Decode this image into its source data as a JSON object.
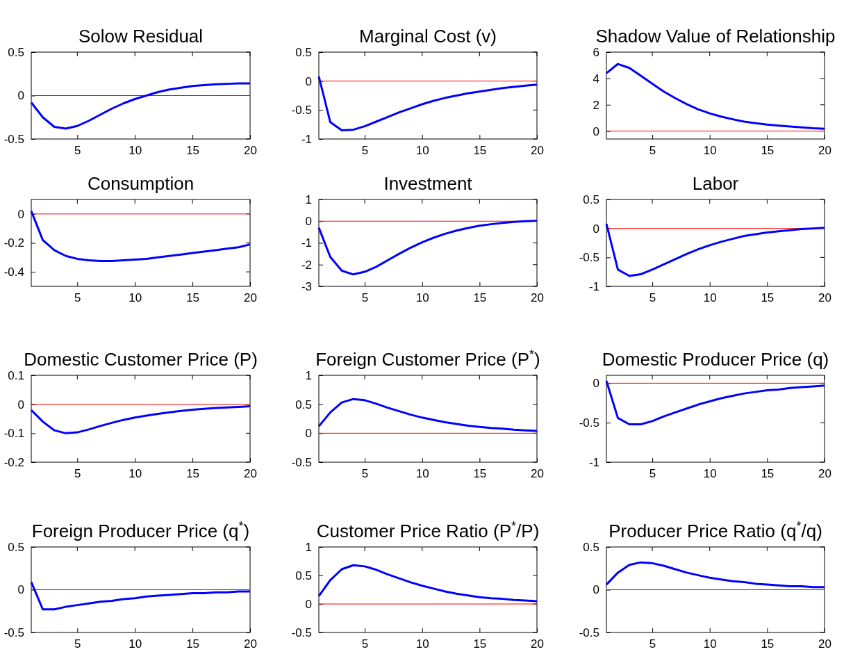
{
  "chart_data": [
    {
      "type": "line",
      "title": "Solow Residual",
      "x": [
        1,
        2,
        3,
        4,
        5,
        6,
        7,
        8,
        9,
        10,
        11,
        12,
        13,
        14,
        15,
        16,
        17,
        18,
        19,
        20
      ],
      "xlim": [
        1,
        20
      ],
      "xticks": [
        5,
        10,
        15,
        20
      ],
      "ylim": [
        -0.5,
        0.5
      ],
      "yticks": [
        -0.5,
        0,
        0.5
      ],
      "ref_lines": [
        {
          "axis": "y",
          "value": 0,
          "color": "#ff0000"
        }
      ],
      "series": [
        {
          "color": "#0000ff",
          "values": [
            -0.08,
            -0.25,
            -0.36,
            -0.38,
            -0.35,
            -0.29,
            -0.22,
            -0.15,
            -0.09,
            -0.04,
            0.0,
            0.04,
            0.07,
            0.09,
            0.11,
            0.12,
            0.13,
            0.135,
            0.14,
            0.14
          ]
        }
      ]
    },
    {
      "type": "line",
      "title": "Marginal Cost (v)",
      "x": [
        1,
        2,
        3,
        4,
        5,
        6,
        7,
        8,
        9,
        10,
        11,
        12,
        13,
        14,
        15,
        16,
        17,
        18,
        19,
        20
      ],
      "xlim": [
        1,
        20
      ],
      "xticks": [
        5,
        10,
        15,
        20
      ],
      "ylim": [
        -1,
        0.5
      ],
      "yticks": [
        -1,
        -0.5,
        0,
        0.5
      ],
      "ref_lines": [
        {
          "axis": "y",
          "value": 0,
          "color": "#ff0000"
        }
      ],
      "series": [
        {
          "color": "#0000ff",
          "values": [
            0.08,
            -0.71,
            -0.85,
            -0.84,
            -0.78,
            -0.7,
            -0.62,
            -0.54,
            -0.47,
            -0.4,
            -0.34,
            -0.29,
            -0.25,
            -0.21,
            -0.18,
            -0.15,
            -0.12,
            -0.1,
            -0.08,
            -0.06
          ]
        }
      ]
    },
    {
      "type": "line",
      "title": "Shadow Value of Relationship",
      "x": [
        1,
        2,
        3,
        4,
        5,
        6,
        7,
        8,
        9,
        10,
        11,
        12,
        13,
        14,
        15,
        16,
        17,
        18,
        19,
        20
      ],
      "xlim": [
        1,
        20
      ],
      "xticks": [
        5,
        10,
        15,
        20
      ],
      "ylim": [
        -0.6,
        6
      ],
      "yticks": [
        0,
        2,
        4,
        6
      ],
      "ref_lines": [
        {
          "axis": "y",
          "value": 0,
          "color": "#ff0000"
        }
      ],
      "series": [
        {
          "color": "#0000ff",
          "values": [
            4.4,
            5.1,
            4.8,
            4.2,
            3.6,
            3.0,
            2.5,
            2.05,
            1.65,
            1.35,
            1.1,
            0.9,
            0.72,
            0.6,
            0.5,
            0.42,
            0.35,
            0.28,
            0.22,
            0.18
          ]
        }
      ]
    },
    {
      "type": "line",
      "title": "Consumption",
      "x": [
        1,
        2,
        3,
        4,
        5,
        6,
        7,
        8,
        9,
        10,
        11,
        12,
        13,
        14,
        15,
        16,
        17,
        18,
        19,
        20
      ],
      "xlim": [
        1,
        20
      ],
      "xticks": [
        5,
        10,
        15,
        20
      ],
      "ylim": [
        -0.5,
        0.1
      ],
      "yticks": [
        -0.4,
        -0.2,
        0
      ],
      "ref_lines": [
        {
          "axis": "y",
          "value": 0,
          "color": "#ff0000"
        }
      ],
      "series": [
        {
          "color": "#0000ff",
          "values": [
            0.02,
            -0.18,
            -0.25,
            -0.29,
            -0.31,
            -0.32,
            -0.325,
            -0.325,
            -0.32,
            -0.315,
            -0.31,
            -0.3,
            -0.29,
            -0.28,
            -0.27,
            -0.26,
            -0.25,
            -0.24,
            -0.23,
            -0.21
          ]
        }
      ]
    },
    {
      "type": "line",
      "title": "Investment",
      "x": [
        1,
        2,
        3,
        4,
        5,
        6,
        7,
        8,
        9,
        10,
        11,
        12,
        13,
        14,
        15,
        16,
        17,
        18,
        19,
        20
      ],
      "xlim": [
        1,
        20
      ],
      "xticks": [
        5,
        10,
        15,
        20
      ],
      "ylim": [
        -3,
        1
      ],
      "yticks": [
        -3,
        -2,
        -1,
        0,
        1
      ],
      "ref_lines": [
        {
          "axis": "y",
          "value": 0,
          "color": "#ff0000"
        }
      ],
      "series": [
        {
          "color": "#0000ff",
          "values": [
            -0.3,
            -1.65,
            -2.28,
            -2.45,
            -2.33,
            -2.1,
            -1.8,
            -1.5,
            -1.22,
            -0.97,
            -0.76,
            -0.58,
            -0.43,
            -0.31,
            -0.21,
            -0.14,
            -0.08,
            -0.03,
            0.0,
            0.02
          ]
        }
      ]
    },
    {
      "type": "line",
      "title": "Labor",
      "x": [
        1,
        2,
        3,
        4,
        5,
        6,
        7,
        8,
        9,
        10,
        11,
        12,
        13,
        14,
        15,
        16,
        17,
        18,
        19,
        20
      ],
      "xlim": [
        1,
        20
      ],
      "xticks": [
        5,
        10,
        15,
        20
      ],
      "ylim": [
        -1,
        0.5
      ],
      "yticks": [
        -1,
        -0.5,
        0,
        0.5
      ],
      "ref_lines": [
        {
          "axis": "y",
          "value": 0,
          "color": "#ff0000"
        }
      ],
      "series": [
        {
          "color": "#0000ff",
          "values": [
            0.08,
            -0.71,
            -0.82,
            -0.79,
            -0.71,
            -0.62,
            -0.53,
            -0.44,
            -0.36,
            -0.29,
            -0.23,
            -0.18,
            -0.13,
            -0.1,
            -0.07,
            -0.05,
            -0.03,
            -0.01,
            0.0,
            0.01
          ]
        }
      ]
    },
    {
      "type": "line",
      "title": "Domestic Customer Price (P)",
      "x": [
        1,
        2,
        3,
        4,
        5,
        6,
        7,
        8,
        9,
        10,
        11,
        12,
        13,
        14,
        15,
        16,
        17,
        18,
        19,
        20
      ],
      "xlim": [
        1,
        20
      ],
      "xticks": [
        5,
        10,
        15,
        20
      ],
      "ylim": [
        -0.2,
        0.1
      ],
      "yticks": [
        -0.2,
        -0.1,
        0,
        0.1
      ],
      "ref_lines": [
        {
          "axis": "y",
          "value": 0,
          "color": "#ff0000"
        }
      ],
      "series": [
        {
          "color": "#0000ff",
          "values": [
            -0.02,
            -0.06,
            -0.09,
            -0.1,
            -0.097,
            -0.087,
            -0.075,
            -0.064,
            -0.054,
            -0.046,
            -0.039,
            -0.033,
            -0.028,
            -0.023,
            -0.019,
            -0.016,
            -0.013,
            -0.011,
            -0.009,
            -0.007
          ]
        }
      ]
    },
    {
      "type": "line",
      "title": "Foreign Customer Price (P$^{*}$)",
      "x": [
        1,
        2,
        3,
        4,
        5,
        6,
        7,
        8,
        9,
        10,
        11,
        12,
        13,
        14,
        15,
        16,
        17,
        18,
        19,
        20
      ],
      "xlim": [
        1,
        20
      ],
      "xticks": [
        5,
        10,
        15,
        20
      ],
      "ylim": [
        -0.5,
        1
      ],
      "yticks": [
        -0.5,
        0,
        0.5,
        1
      ],
      "ref_lines": [
        {
          "axis": "y",
          "value": 0,
          "color": "#ff0000"
        }
      ],
      "series": [
        {
          "color": "#0000ff",
          "values": [
            0.12,
            0.36,
            0.53,
            0.59,
            0.57,
            0.51,
            0.44,
            0.38,
            0.32,
            0.27,
            0.23,
            0.19,
            0.16,
            0.13,
            0.11,
            0.09,
            0.08,
            0.06,
            0.05,
            0.04
          ]
        }
      ]
    },
    {
      "type": "line",
      "title": "Domestic Producer Price (q)",
      "x": [
        1,
        2,
        3,
        4,
        5,
        6,
        7,
        8,
        9,
        10,
        11,
        12,
        13,
        14,
        15,
        16,
        17,
        18,
        19,
        20
      ],
      "xlim": [
        1,
        20
      ],
      "xticks": [
        5,
        10,
        15,
        20
      ],
      "ylim": [
        -1,
        0.1
      ],
      "yticks": [
        -1,
        -0.5,
        0
      ],
      "ref_lines": [
        {
          "axis": "y",
          "value": 0,
          "color": "#ff0000"
        }
      ],
      "series": [
        {
          "color": "#0000ff",
          "values": [
            0.03,
            -0.44,
            -0.52,
            -0.52,
            -0.48,
            -0.42,
            -0.37,
            -0.32,
            -0.27,
            -0.23,
            -0.19,
            -0.16,
            -0.13,
            -0.11,
            -0.09,
            -0.08,
            -0.06,
            -0.05,
            -0.04,
            -0.03
          ]
        }
      ]
    },
    {
      "type": "line",
      "title": "Foreign Producer Price (q$^{*}$)",
      "x": [
        1,
        2,
        3,
        4,
        5,
        6,
        7,
        8,
        9,
        10,
        11,
        12,
        13,
        14,
        15,
        16,
        17,
        18,
        19,
        20
      ],
      "xlim": [
        1,
        20
      ],
      "xticks": [
        5,
        10,
        15,
        20
      ],
      "ylim": [
        -0.5,
        0.5
      ],
      "yticks": [
        -0.5,
        0,
        0.5
      ],
      "ref_lines": [
        {
          "axis": "y",
          "value": 0,
          "color": "#ff0000"
        }
      ],
      "series": [
        {
          "color": "#0000ff",
          "values": [
            0.09,
            -0.23,
            -0.23,
            -0.2,
            -0.18,
            -0.16,
            -0.14,
            -0.13,
            -0.11,
            -0.1,
            -0.08,
            -0.07,
            -0.06,
            -0.05,
            -0.04,
            -0.04,
            -0.03,
            -0.03,
            -0.02,
            -0.02
          ]
        }
      ]
    },
    {
      "type": "line",
      "title": "Customer Price Ratio (P$^{*}$/P)",
      "x": [
        1,
        2,
        3,
        4,
        5,
        6,
        7,
        8,
        9,
        10,
        11,
        12,
        13,
        14,
        15,
        16,
        17,
        18,
        19,
        20
      ],
      "xlim": [
        1,
        20
      ],
      "xticks": [
        5,
        10,
        15,
        20
      ],
      "ylim": [
        -0.5,
        1
      ],
      "yticks": [
        -0.5,
        0,
        0.5,
        1
      ],
      "ref_lines": [
        {
          "axis": "y",
          "value": 0,
          "color": "#ff0000"
        }
      ],
      "series": [
        {
          "color": "#0000ff",
          "values": [
            0.14,
            0.42,
            0.61,
            0.68,
            0.66,
            0.6,
            0.52,
            0.45,
            0.38,
            0.32,
            0.27,
            0.22,
            0.18,
            0.15,
            0.12,
            0.1,
            0.09,
            0.07,
            0.06,
            0.05
          ]
        }
      ]
    },
    {
      "type": "line",
      "title": "Producer Price Ratio (q$^{*}$/q)",
      "x": [
        1,
        2,
        3,
        4,
        5,
        6,
        7,
        8,
        9,
        10,
        11,
        12,
        13,
        14,
        15,
        16,
        17,
        18,
        19,
        20
      ],
      "xlim": [
        1,
        20
      ],
      "xticks": [
        5,
        10,
        15,
        20
      ],
      "ylim": [
        -0.5,
        0.5
      ],
      "yticks": [
        -0.5,
        0,
        0.5
      ],
      "ref_lines": [
        {
          "axis": "y",
          "value": 0,
          "color": "#ff0000"
        }
      ],
      "series": [
        {
          "color": "#0000ff",
          "values": [
            0.06,
            0.2,
            0.29,
            0.32,
            0.31,
            0.28,
            0.24,
            0.2,
            0.17,
            0.14,
            0.12,
            0.1,
            0.09,
            0.07,
            0.06,
            0.05,
            0.04,
            0.04,
            0.03,
            0.03
          ]
        }
      ]
    }
  ]
}
